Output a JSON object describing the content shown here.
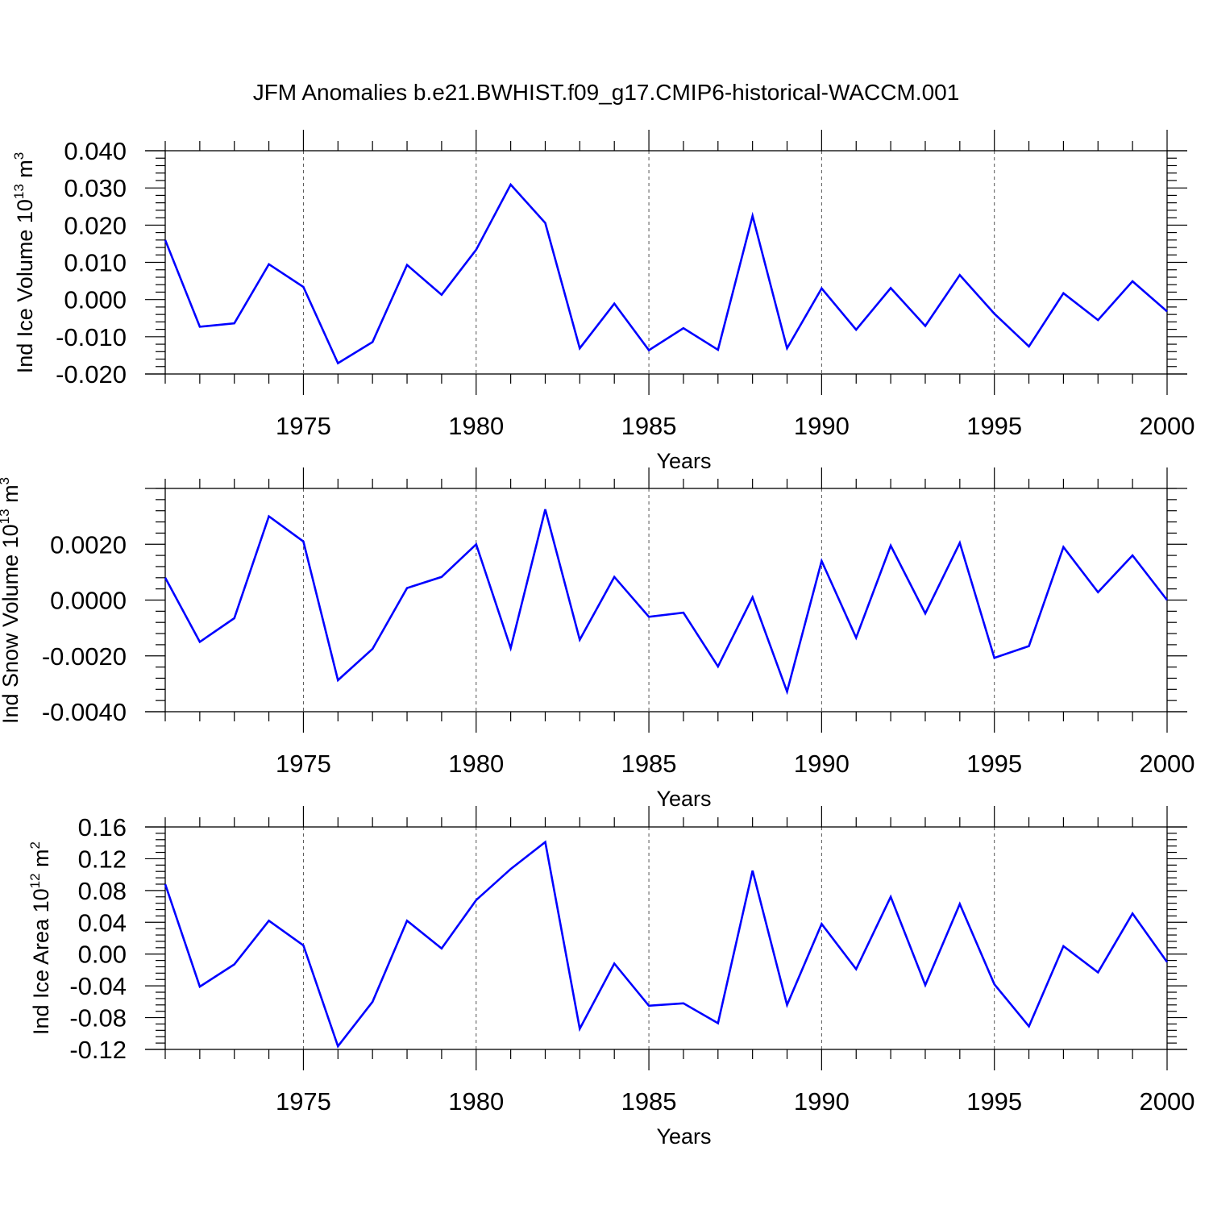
{
  "title": "JFM Anomalies b.e21.BWHIST.f09_g17.CMIP6-historical-WACCM.001",
  "colors": {
    "series": "#0000ff",
    "grid": "#555555",
    "axis": "#000000"
  },
  "chart_data": [
    {
      "type": "line",
      "ylabel": "Ind Ice Volume 10",
      "ylabel_exp": "13",
      "ylabel_unit": " m",
      "ylabel_unit_exp": "3",
      "xlabel": "Years",
      "xlim": [
        1971,
        2000
      ],
      "ylim": [
        -0.02,
        0.04
      ],
      "yticks": [
        -0.02,
        -0.01,
        0.0,
        0.01,
        0.02,
        0.03,
        0.04
      ],
      "ytick_labels": [
        "-0.020",
        "-0.010",
        "0.000",
        "0.010",
        "0.020",
        "0.030",
        "0.040"
      ],
      "xticks": [
        1975,
        1980,
        1985,
        1990,
        1995,
        2000
      ],
      "xtick_labels": [
        "1975",
        "1980",
        "1985",
        "1990",
        "1995",
        "2000"
      ],
      "grid": "vertical dashed at major x ticks",
      "x": [
        1971,
        1972,
        1973,
        1974,
        1975,
        1976,
        1977,
        1978,
        1979,
        1980,
        1981,
        1982,
        1983,
        1984,
        1985,
        1986,
        1987,
        1988,
        1989,
        1990,
        1991,
        1992,
        1993,
        1994,
        1995,
        1996,
        1997,
        1998,
        1999,
        2000
      ],
      "values": [
        0.016,
        -0.0073,
        -0.0064,
        0.0095,
        0.0034,
        -0.0171,
        -0.0114,
        0.0093,
        0.0013,
        0.0134,
        0.0309,
        0.0206,
        -0.0131,
        -0.0011,
        -0.0136,
        -0.0077,
        -0.0135,
        0.0225,
        -0.0131,
        0.003,
        -0.0081,
        0.0031,
        -0.0071,
        0.0066,
        -0.0038,
        -0.0126,
        0.0017,
        -0.0055,
        0.0049,
        -0.0032
      ]
    },
    {
      "type": "line",
      "ylabel": "Ind Snow Volume 10",
      "ylabel_exp": "13",
      "ylabel_unit": " m",
      "ylabel_unit_exp": "3",
      "xlabel": "Years",
      "xlim": [
        1971,
        2000
      ],
      "ylim": [
        -0.004,
        0.004
      ],
      "yticks": [
        -0.004,
        -0.002,
        0.0,
        0.002
      ],
      "ytick_labels": [
        "-0.0040",
        "-0.0020",
        "0.0000",
        "0.0020"
      ],
      "xticks": [
        1975,
        1980,
        1985,
        1990,
        1995,
        2000
      ],
      "xtick_labels": [
        "1975",
        "1980",
        "1985",
        "1990",
        "1995",
        "2000"
      ],
      "grid": "vertical dashed at major x ticks",
      "x": [
        1971,
        1972,
        1973,
        1974,
        1975,
        1976,
        1977,
        1978,
        1979,
        1980,
        1981,
        1982,
        1983,
        1984,
        1985,
        1986,
        1987,
        1988,
        1989,
        1990,
        1991,
        1992,
        1993,
        1994,
        1995,
        1996,
        1997,
        1998,
        1999,
        2000
      ],
      "values": [
        0.0008,
        -0.0015,
        -0.00065,
        0.003,
        0.0021,
        -0.00287,
        -0.00175,
        0.00043,
        0.00083,
        0.002,
        -0.00172,
        0.00325,
        -0.00142,
        0.00083,
        -0.0006,
        -0.00045,
        -0.00238,
        0.0001,
        -0.00328,
        0.0014,
        -0.00135,
        0.00195,
        -0.00048,
        0.00205,
        -0.00207,
        -0.00165,
        0.0019,
        0.00028,
        0.0016,
        0.0
      ]
    },
    {
      "type": "line",
      "ylabel": "Ind Ice Area 10",
      "ylabel_exp": "12",
      "ylabel_unit": " m",
      "ylabel_unit_exp": "2",
      "xlabel": "Years",
      "xlim": [
        1971,
        2000
      ],
      "ylim": [
        -0.12,
        0.16
      ],
      "yticks": [
        -0.12,
        -0.08,
        -0.04,
        0.0,
        0.04,
        0.08,
        0.12,
        0.16
      ],
      "ytick_labels": [
        "-0.12",
        "-0.08",
        "-0.04",
        "0.00",
        "0.04",
        "0.08",
        "0.12",
        "0.16"
      ],
      "xticks": [
        1975,
        1980,
        1985,
        1990,
        1995,
        2000
      ],
      "xtick_labels": [
        "1975",
        "1980",
        "1985",
        "1990",
        "1995",
        "2000"
      ],
      "grid": "vertical dashed at major x ticks",
      "x": [
        1971,
        1972,
        1973,
        1974,
        1975,
        1976,
        1977,
        1978,
        1979,
        1980,
        1981,
        1982,
        1983,
        1984,
        1985,
        1986,
        1987,
        1988,
        1989,
        1990,
        1991,
        1992,
        1993,
        1994,
        1995,
        1996,
        1997,
        1998,
        1999,
        2000
      ],
      "values": [
        0.088,
        -0.041,
        -0.013,
        0.042,
        0.011,
        -0.116,
        -0.06,
        0.042,
        0.007,
        0.068,
        0.107,
        0.141,
        -0.094,
        -0.012,
        -0.065,
        -0.062,
        -0.087,
        0.105,
        -0.064,
        0.038,
        -0.019,
        0.072,
        -0.039,
        0.063,
        -0.038,
        -0.091,
        0.01,
        -0.023,
        0.051,
        -0.01
      ]
    }
  ]
}
